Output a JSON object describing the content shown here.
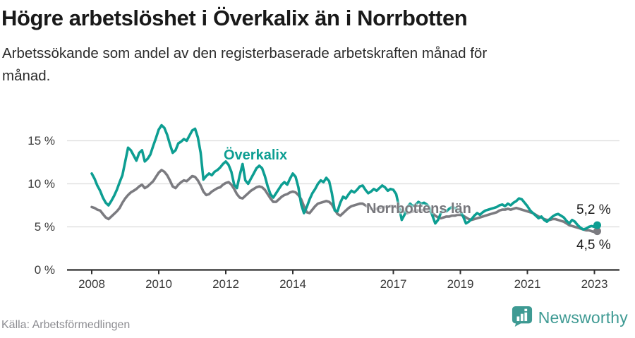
{
  "header": {
    "title": "Högre arbetslöshet i Överkalix än i Norrbotten",
    "subtitle_lines": [
      "Arbetssökande som andel av den registerbaserade arbetskraften månad för",
      "månad."
    ]
  },
  "footer": {
    "source": "Källa: Arbetsförmedlingen",
    "brand": "Newsworthy"
  },
  "colors": {
    "overkalix_line": "#0d9e92",
    "norrbotten_line": "#7b7b80",
    "norrbotten_label": "#77777c",
    "grid": "#dcdcdc",
    "axis": "#2f2f2f",
    "axis_text": "#3a3a3a",
    "title_text": "#191919",
    "source_text": "#8c8c91",
    "logo_teal": "#3e9a93",
    "background": "#ffffff"
  },
  "chart_data": {
    "type": "line",
    "title": "Högre arbetslöshet i Överkalix än i Norrbotten",
    "subtitle": "Arbetssökande som andel av den registerbaserade arbetskraften månad för månad.",
    "frequency": "monthly",
    "x_start": "2008-01",
    "x_end": "2023-02",
    "x_tick_years": [
      2008,
      2010,
      2012,
      2014,
      2017,
      2019,
      2021,
      2023
    ],
    "x_tick_labels": [
      "2008",
      "2010",
      "2012",
      "2014",
      "2017",
      "2019",
      "2021",
      "2023"
    ],
    "y_ticks": [
      0,
      5,
      10,
      15
    ],
    "y_tick_labels": [
      "0 %",
      "5 %",
      "10 %",
      "15 %"
    ],
    "ylim": [
      0,
      17.5
    ],
    "grid": true,
    "legend_position": "inline-labels",
    "source": "Källa: Arbetsförmedlingen",
    "series": [
      {
        "name": "Överkalix",
        "color": "#0d9e92",
        "end_label": "5,2 %",
        "end_value": 5.2,
        "values": [
          11.2,
          10.6,
          9.8,
          9.2,
          8.4,
          7.8,
          7.5,
          8.0,
          8.6,
          9.3,
          10.2,
          11.0,
          12.6,
          14.2,
          13.9,
          13.3,
          12.7,
          13.6,
          13.9,
          12.6,
          12.9,
          13.4,
          14.4,
          15.3,
          16.3,
          16.8,
          16.5,
          15.7,
          14.6,
          13.6,
          13.9,
          14.7,
          14.9,
          15.2,
          15.0,
          15.6,
          16.2,
          16.4,
          15.4,
          13.6,
          10.5,
          10.9,
          11.2,
          11.0,
          11.4,
          11.6,
          11.9,
          12.3,
          12.6,
          12.2,
          11.4,
          9.9,
          9.5,
          11.0,
          12.3,
          10.4,
          10.0,
          10.6,
          11.2,
          11.8,
          12.1,
          11.8,
          10.9,
          9.7,
          8.8,
          8.4,
          8.9,
          9.4,
          9.9,
          10.2,
          9.9,
          10.6,
          11.2,
          10.8,
          9.6,
          7.6,
          6.6,
          7.3,
          8.2,
          8.9,
          9.4,
          10.0,
          10.4,
          10.2,
          10.7,
          10.3,
          8.9,
          6.9,
          6.8,
          7.8,
          8.5,
          8.3,
          8.8,
          9.2,
          9.0,
          9.3,
          9.7,
          9.8,
          9.3,
          8.9,
          9.1,
          9.4,
          9.2,
          9.5,
          9.8,
          9.6,
          9.2,
          9.4,
          9.3,
          8.8,
          7.4,
          5.8,
          6.4,
          7.3,
          7.7,
          7.4,
          7.6,
          7.9,
          7.7,
          7.8,
          7.6,
          7.2,
          6.3,
          5.4,
          5.8,
          6.6,
          7.0,
          6.8,
          7.1,
          7.3,
          7.2,
          7.0,
          6.8,
          6.2,
          5.4,
          5.6,
          5.9,
          6.3,
          6.6,
          6.4,
          6.7,
          6.9,
          7.0,
          7.1,
          7.2,
          7.3,
          7.5,
          7.6,
          7.4,
          7.7,
          7.5,
          7.8,
          8.0,
          8.3,
          8.2,
          7.8,
          7.4,
          6.9,
          6.6,
          6.3,
          6.0,
          6.2,
          5.8,
          5.6,
          5.9,
          6.2,
          6.4,
          6.5,
          6.3,
          6.1,
          5.7,
          5.4,
          5.8,
          5.6,
          5.2,
          4.9,
          4.7,
          4.8,
          5.0,
          5.1,
          5.0,
          5.2
        ]
      },
      {
        "name": "Norrbottens län",
        "color": "#7b7b80",
        "end_label": "4,5 %",
        "end_value": 4.5,
        "values": [
          7.3,
          7.2,
          7.0,
          6.9,
          6.5,
          6.1,
          5.9,
          6.2,
          6.5,
          6.8,
          7.2,
          7.8,
          8.3,
          8.7,
          9.0,
          9.2,
          9.4,
          9.7,
          9.9,
          9.5,
          9.7,
          10.0,
          10.3,
          10.8,
          11.3,
          11.6,
          11.4,
          11.0,
          10.4,
          9.7,
          9.5,
          9.9,
          10.2,
          10.4,
          10.3,
          10.6,
          10.9,
          10.8,
          10.4,
          9.8,
          9.1,
          8.7,
          8.8,
          9.1,
          9.3,
          9.5,
          9.6,
          9.9,
          10.1,
          10.2,
          9.9,
          9.4,
          8.8,
          8.4,
          8.3,
          8.6,
          8.9,
          9.2,
          9.4,
          9.6,
          9.7,
          9.6,
          9.3,
          8.8,
          8.3,
          7.9,
          7.9,
          8.2,
          8.5,
          8.7,
          8.8,
          9.0,
          9.1,
          9.0,
          8.7,
          8.2,
          7.4,
          6.7,
          6.6,
          7.0,
          7.4,
          7.7,
          7.8,
          7.9,
          8.0,
          7.9,
          7.6,
          7.0,
          6.5,
          6.3,
          6.6,
          6.9,
          7.2,
          7.4,
          7.5,
          7.6,
          7.7,
          7.7,
          7.5,
          7.3,
          7.1,
          7.0,
          7.1,
          7.2,
          7.3,
          7.3,
          7.3,
          7.4,
          7.4,
          7.3,
          7.1,
          6.9,
          6.7,
          6.6,
          6.7,
          6.8,
          6.9,
          6.9,
          6.9,
          7.0,
          6.9,
          6.8,
          6.6,
          6.3,
          6.1,
          6.0,
          6.1,
          6.2,
          6.2,
          6.3,
          6.3,
          6.4,
          6.4,
          6.3,
          6.1,
          5.9,
          5.8,
          5.9,
          6.0,
          6.1,
          6.2,
          6.3,
          6.4,
          6.5,
          6.6,
          6.7,
          6.9,
          7.0,
          7.0,
          7.1,
          7.0,
          7.1,
          7.2,
          7.1,
          7.0,
          6.9,
          6.8,
          6.7,
          6.6,
          6.4,
          6.2,
          6.1,
          5.9,
          5.8,
          5.8,
          5.9,
          5.9,
          5.8,
          5.7,
          5.6,
          5.4,
          5.2,
          5.1,
          5.0,
          4.9,
          4.8,
          4.7,
          4.6,
          4.6,
          4.5,
          4.4,
          4.5
        ]
      }
    ]
  }
}
